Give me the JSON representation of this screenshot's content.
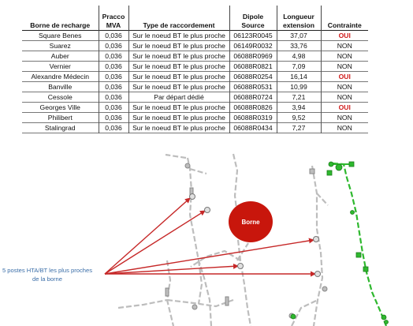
{
  "table": {
    "headers": [
      "Borne de recharge",
      "Pracco\nMVA",
      "Type de raccordement",
      "Dipole Source",
      "Longueur\nextension",
      "Contrainte"
    ],
    "rows": [
      [
        "Square Benes",
        "0,036",
        "Sur le noeud BT le plus proche",
        "06123R0045",
        "37,07",
        "OUI"
      ],
      [
        "Suarez",
        "0,036",
        "Sur le noeud BT le plus proche",
        "06149R0032",
        "33,76",
        "NON"
      ],
      [
        "Auber",
        "0,036",
        "Sur le noeud BT le plus proche",
        "06088R0969",
        "4,98",
        "NON"
      ],
      [
        "Vernier",
        "0,036",
        "Sur le noeud BT le plus proche",
        "06088R0821",
        "7,09",
        "NON"
      ],
      [
        "Alexandre Médecin",
        "0,036",
        "Sur le noeud BT le plus proche",
        "06088R0254",
        "16,14",
        "OUI"
      ],
      [
        "Banville",
        "0,036",
        "Sur le noeud BT le plus proche",
        "06088R0531",
        "10,99",
        "NON"
      ],
      [
        "Cessole",
        "0,036",
        "Par départ dédié",
        "06088R0724",
        "7,21",
        "NON"
      ],
      [
        "Georges Ville",
        "0,036",
        "Sur le noeud BT le plus proche",
        "06088R0826",
        "3,94",
        "OUI"
      ],
      [
        "Philibert",
        "0,036",
        "Sur le noeud BT le plus proche",
        "06088R0319",
        "9,52",
        "NON"
      ],
      [
        "Stalingrad",
        "0,036",
        "Sur le noeud BT le plus proche",
        "06088R0434",
        "7,27",
        "NON"
      ]
    ]
  },
  "map": {
    "borne_label": "Borne",
    "annotation": "5 postes HTA/BT les plus proches de la borne",
    "colors": {
      "arrow": "#c62828",
      "borne": "#c8160c",
      "network_gray": "#bdbdbd",
      "network_green": "#2eb82e",
      "annotation": "#3b6ea8"
    }
  }
}
